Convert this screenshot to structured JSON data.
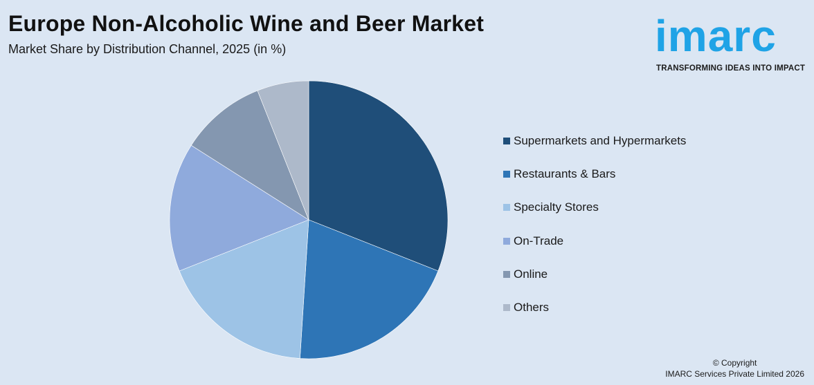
{
  "header": {
    "title": "Europe Non-Alcoholic Wine and Beer Market",
    "subtitle": "Market Share by Distribution Channel, 2025 (in %)"
  },
  "logo": {
    "word": "imarc",
    "tagline": "TRANSFORMING IDEAS INTO IMPACT",
    "color": "#1fa3e6"
  },
  "chart_data": {
    "type": "pie",
    "title": "Europe Non-Alcoholic Wine and Beer Market",
    "subtitle": "Market Share by Distribution Channel, 2025 (in %)",
    "legend_position": "right",
    "slices": [
      {
        "label": "Supermarkets and Hypermarkets",
        "value": 31,
        "color": "#1f4e79"
      },
      {
        "label": "Restaurants & Bars",
        "value": 20,
        "color": "#2e75b6"
      },
      {
        "label": "Specialty Stores",
        "value": 18,
        "color": "#9dc3e6"
      },
      {
        "label": "On-Trade",
        "value": 15,
        "color": "#8faadc"
      },
      {
        "label": "Online",
        "value": 10,
        "color": "#8497b0"
      },
      {
        "label": "Others",
        "value": 6,
        "color": "#adb9ca"
      }
    ]
  },
  "footer": {
    "copyright_line1": "© Copyright",
    "copyright_line2": "IMARC Services Private Limited 2026"
  }
}
